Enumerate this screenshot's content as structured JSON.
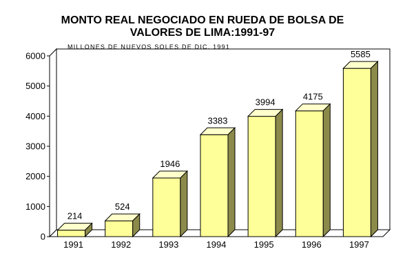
{
  "chart_data": {
    "type": "bar",
    "title_lines": [
      "MONTO REAL NEGOCIADO EN RUEDA DE BOLSA DE",
      "VALORES DE LIMA:1991-97"
    ],
    "subtitle": "MILLONES DE NUEVOS SOLES DE DIC. 1991",
    "categories": [
      "1991",
      "1992",
      "1993",
      "1994",
      "1995",
      "1996",
      "1997"
    ],
    "values": [
      214,
      524,
      1946,
      3383,
      3994,
      4175,
      5585
    ],
    "data_labels": [
      "214",
      "524",
      "1946",
      "3383",
      "3994",
      "4175",
      "5585"
    ],
    "y_ticks": [
      "0",
      "1000",
      "2000",
      "3000",
      "4000",
      "5000",
      "6000"
    ],
    "ylim": [
      0,
      6000
    ],
    "xlabel": "",
    "ylabel": "",
    "legend": "none",
    "colors": {
      "bar_front": "#ffff99",
      "bar_top": "#ffffcc",
      "bar_side": "#8c8a4a",
      "wall": "#ffffff"
    }
  }
}
